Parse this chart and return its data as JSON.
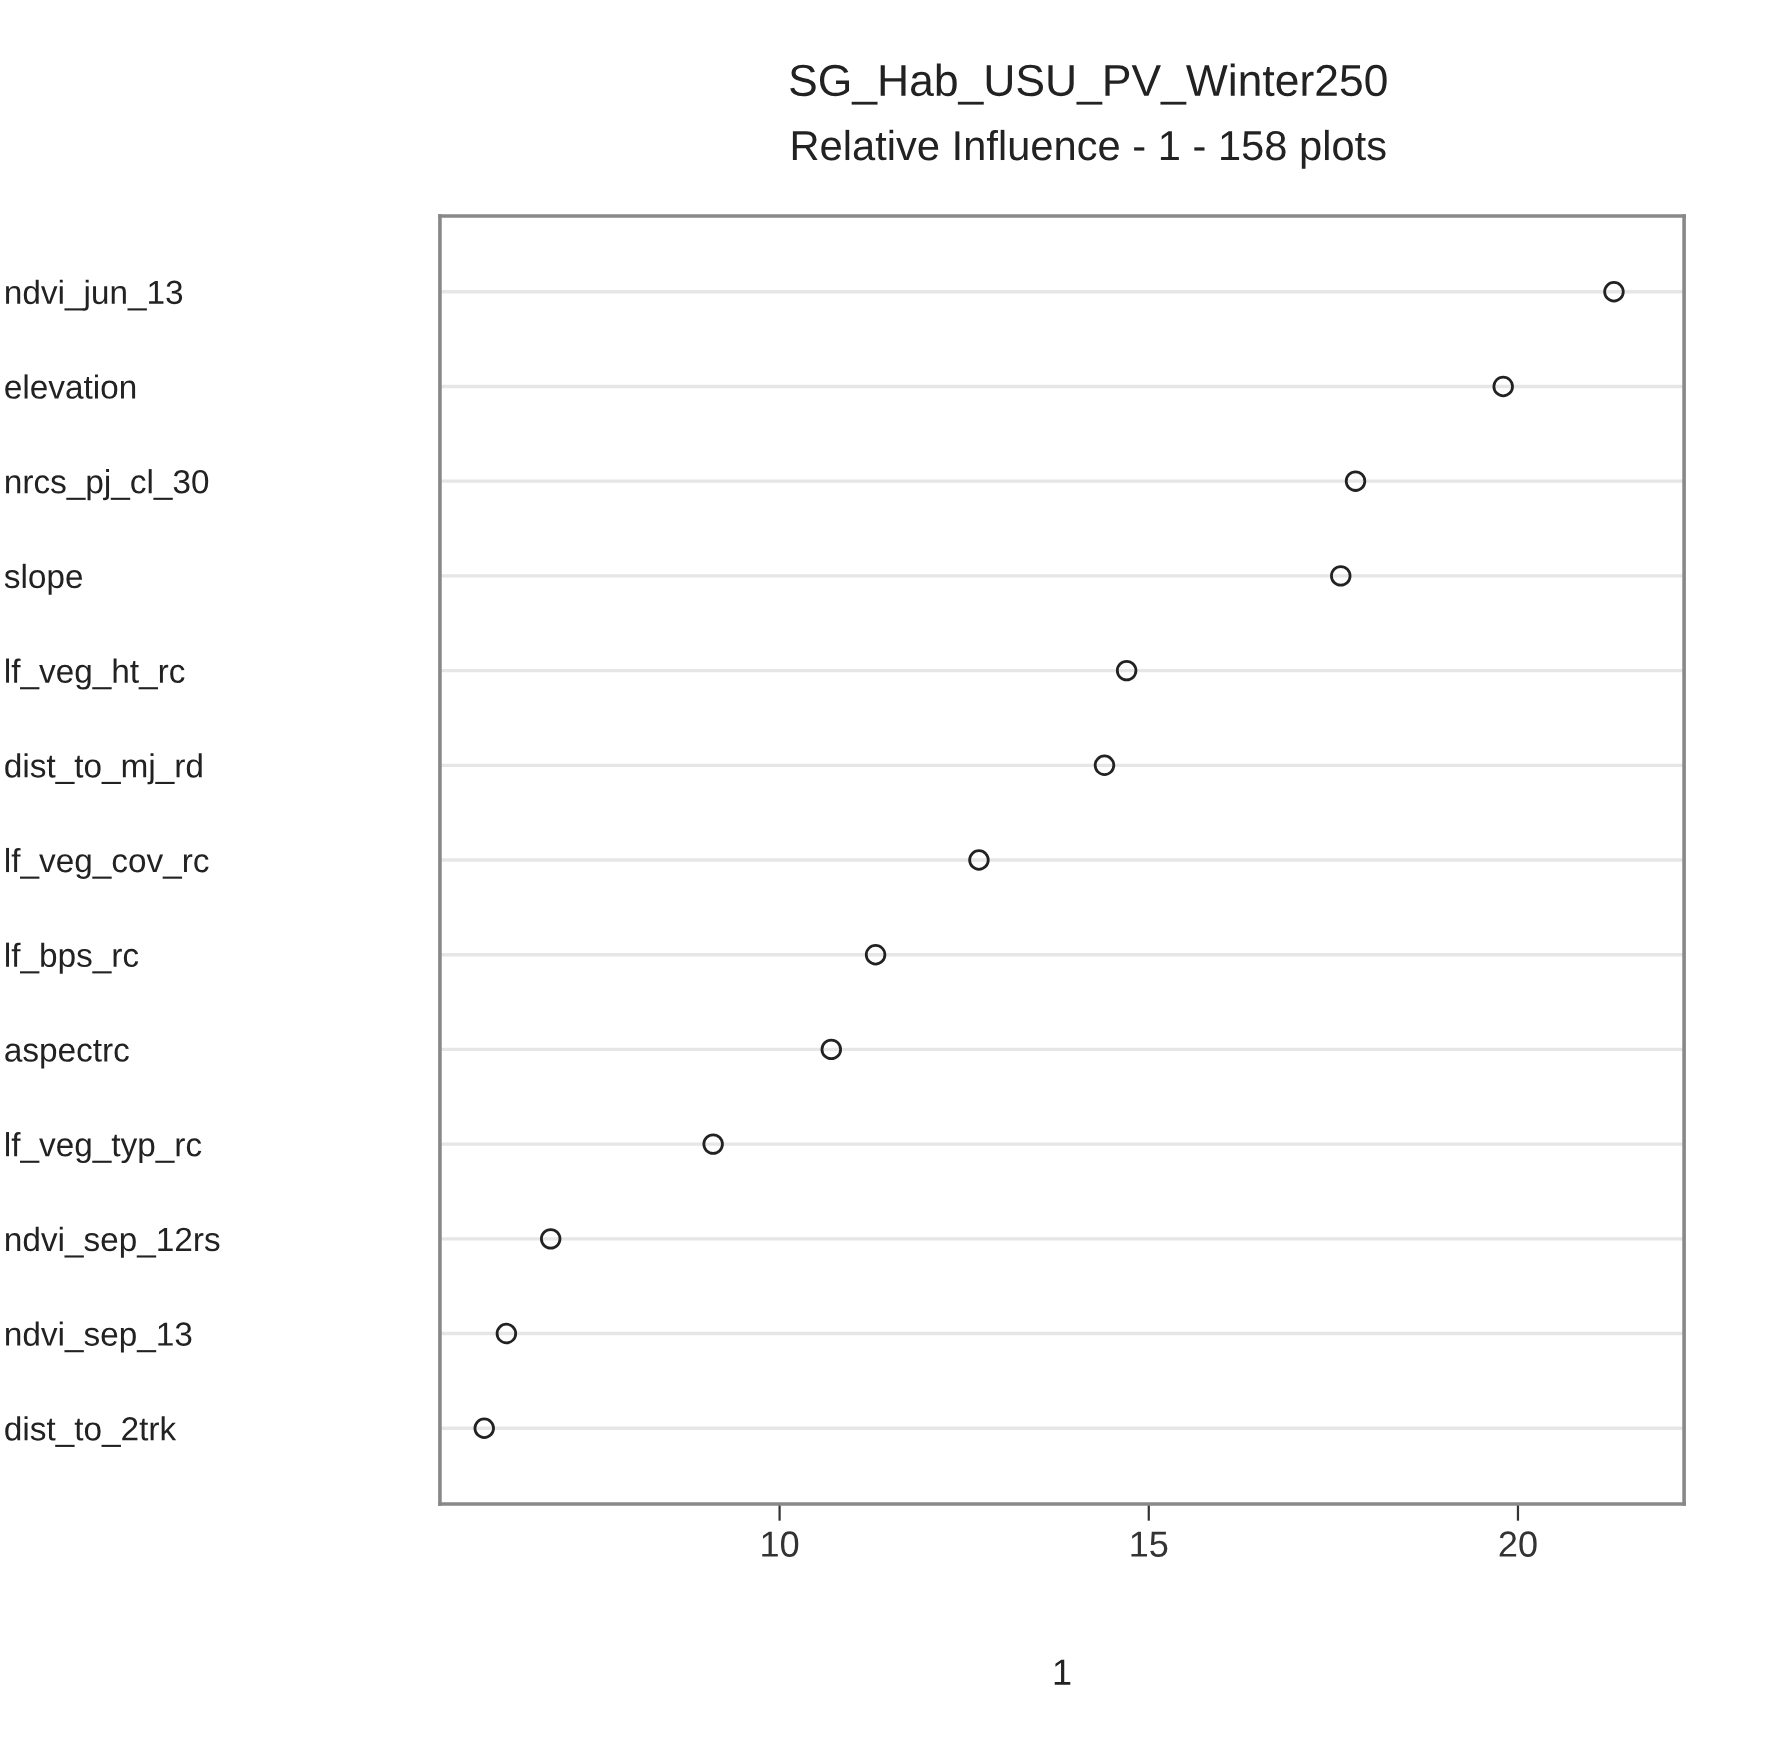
{
  "chart_data": {
    "type": "scatter",
    "title": "SG_Hab_USU_PV_Winter250",
    "subtitle": "Relative Influence - 1 - 158 plots",
    "xlabel": "1",
    "orientation": "horizontal",
    "categories": [
      "ndvi_jun_13",
      "elevation",
      "nrcs_pj_cl_30",
      "slope",
      "lf_veg_ht_rc",
      "dist_to_mj_rd",
      "lf_veg_cov_rc",
      "lf_bps_rc",
      "aspectrc",
      "lf_veg_typ_rc",
      "ndvi_sep_12rs",
      "ndvi_sep_13",
      "dist_to_2trk"
    ],
    "series": [
      {
        "color": "#222222",
        "values": [
          21.3,
          19.8,
          17.8,
          17.6,
          14.7,
          14.4,
          12.7,
          11.3,
          10.7,
          9.1,
          6.9,
          6.3,
          6.0
        ]
      }
    ],
    "xlim": [
      5.4,
      22.25
    ],
    "xticks": [
      10,
      15,
      20
    ],
    "grid": "y",
    "marker": "circle"
  }
}
